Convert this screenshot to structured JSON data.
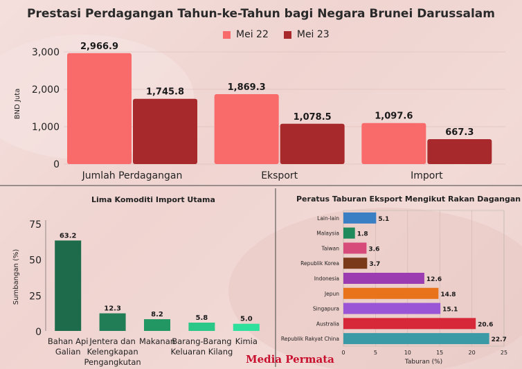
{
  "title": "Prestasi Perdagangan Tahun-ke-Tahun bagi Negara Brunei Darussalam",
  "colors": {
    "mei22": "#f96b6b",
    "mei23": "#a8292c"
  },
  "brand": "Media Permata",
  "chart_data": [
    {
      "type": "bar",
      "title": "Prestasi Perdagangan Tahun-ke-Tahun bagi Negara Brunei Darussalam",
      "ylabel": "BND Juta",
      "categories": [
        "Jumlah Perdagangan",
        "Eksport",
        "Import"
      ],
      "series": [
        {
          "name": "Mei 22",
          "values": [
            2966.9,
            1869.3,
            1097.6
          ],
          "labels": [
            "2,966.9",
            "1,869.3",
            "1,097.6"
          ]
        },
        {
          "name": "Mei 23",
          "values": [
            1745.8,
            1078.5,
            667.3
          ],
          "labels": [
            "1,745.8",
            "1,078.5",
            "667.3"
          ]
        }
      ],
      "ylim": [
        0,
        3100
      ],
      "yticks": [
        0,
        1000,
        2000,
        3000
      ],
      "ytick_labels": [
        "0",
        "1,000",
        "2,000",
        "3,000"
      ],
      "legend": "top"
    },
    {
      "type": "bar",
      "title": "Lima Komoditi Import Utama",
      "ylabel": "Sumbangan (%)",
      "categories": [
        [
          "Bahan Api",
          "Galian"
        ],
        [
          "Jentera dan",
          "Kelengkapan",
          "Pengangkutan"
        ],
        [
          "Makanan"
        ],
        [
          "Barang-Barang",
          "Keluaran Kilang"
        ],
        [
          "Kimia"
        ]
      ],
      "values": [
        63.2,
        12.3,
        8.2,
        5.8,
        5.0
      ],
      "labels": [
        "63.2",
        "12.3",
        "8.2",
        "5.8",
        "5.0"
      ],
      "colors": [
        "#1d6b4a",
        "#207d55",
        "#239763",
        "#2bc788",
        "#2fe09c"
      ],
      "ylim": [
        0,
        80
      ],
      "yticks": [
        0,
        25,
        50,
        75
      ]
    },
    {
      "type": "bar",
      "orientation": "horizontal",
      "title": "Peratus Taburan Eksport Mengikut Rakan Dagangan",
      "xlabel": "Taburan (%)",
      "categories": [
        "Lain-lain",
        "Malaysia",
        "Taiwan",
        "Republik Korea",
        "Indonesia",
        "Jepun",
        "Singapura",
        "Australia",
        "Republik Rakyat China"
      ],
      "values": [
        5.1,
        1.8,
        3.6,
        3.7,
        12.6,
        14.8,
        15.1,
        20.6,
        22.7
      ],
      "labels": [
        "5.1",
        "1.8",
        "3.6",
        "3.7",
        "12.6",
        "14.8",
        "15.1",
        "20.6",
        "22.7"
      ],
      "colors": [
        "#3a7fc4",
        "#1f8a5c",
        "#d64b7a",
        "#7a3a1a",
        "#9b3db0",
        "#e8731a",
        "#9a55d6",
        "#d62839",
        "#3a9aa5"
      ],
      "xlim": [
        0,
        25
      ],
      "xticks": [
        0,
        5,
        10,
        15,
        20,
        25
      ]
    }
  ]
}
